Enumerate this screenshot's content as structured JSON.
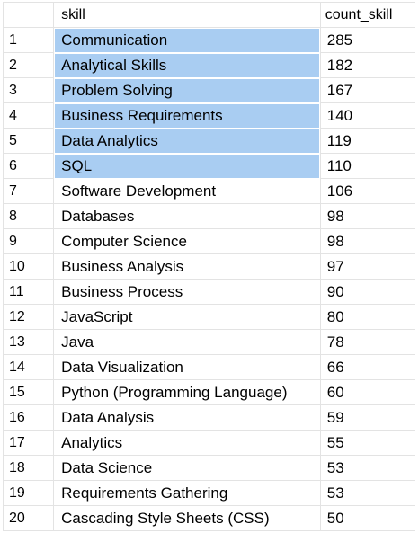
{
  "grid": {
    "columns": [
      "skill",
      "count_skill"
    ],
    "selection_color": "#a9cdf2",
    "rows": [
      {
        "index": "1",
        "skill": "Communication",
        "count": "285",
        "selected": true
      },
      {
        "index": "2",
        "skill": "Analytical Skills",
        "count": "182",
        "selected": true
      },
      {
        "index": "3",
        "skill": "Problem Solving",
        "count": "167",
        "selected": true
      },
      {
        "index": "4",
        "skill": "Business Requirements",
        "count": "140",
        "selected": true
      },
      {
        "index": "5",
        "skill": "Data Analytics",
        "count": "119",
        "selected": true
      },
      {
        "index": "6",
        "skill": "SQL",
        "count": "110",
        "selected": true
      },
      {
        "index": "7",
        "skill": "Software Development",
        "count": "106",
        "selected": false
      },
      {
        "index": "8",
        "skill": "Databases",
        "count": "98",
        "selected": false
      },
      {
        "index": "9",
        "skill": "Computer Science",
        "count": "98",
        "selected": false
      },
      {
        "index": "10",
        "skill": "Business Analysis",
        "count": "97",
        "selected": false
      },
      {
        "index": "11",
        "skill": "Business Process",
        "count": "90",
        "selected": false
      },
      {
        "index": "12",
        "skill": "JavaScript",
        "count": "80",
        "selected": false
      },
      {
        "index": "13",
        "skill": "Java",
        "count": "78",
        "selected": false
      },
      {
        "index": "14",
        "skill": "Data Visualization",
        "count": "66",
        "selected": false
      },
      {
        "index": "15",
        "skill": "Python (Programming Language)",
        "count": "60",
        "selected": false
      },
      {
        "index": "16",
        "skill": "Data Analysis",
        "count": "59",
        "selected": false
      },
      {
        "index": "17",
        "skill": "Analytics",
        "count": "55",
        "selected": false
      },
      {
        "index": "18",
        "skill": "Data Science",
        "count": "53",
        "selected": false
      },
      {
        "index": "19",
        "skill": "Requirements Gathering",
        "count": "53",
        "selected": false
      },
      {
        "index": "20",
        "skill": "Cascading Style Sheets (CSS)",
        "count": "50",
        "selected": false
      }
    ]
  }
}
